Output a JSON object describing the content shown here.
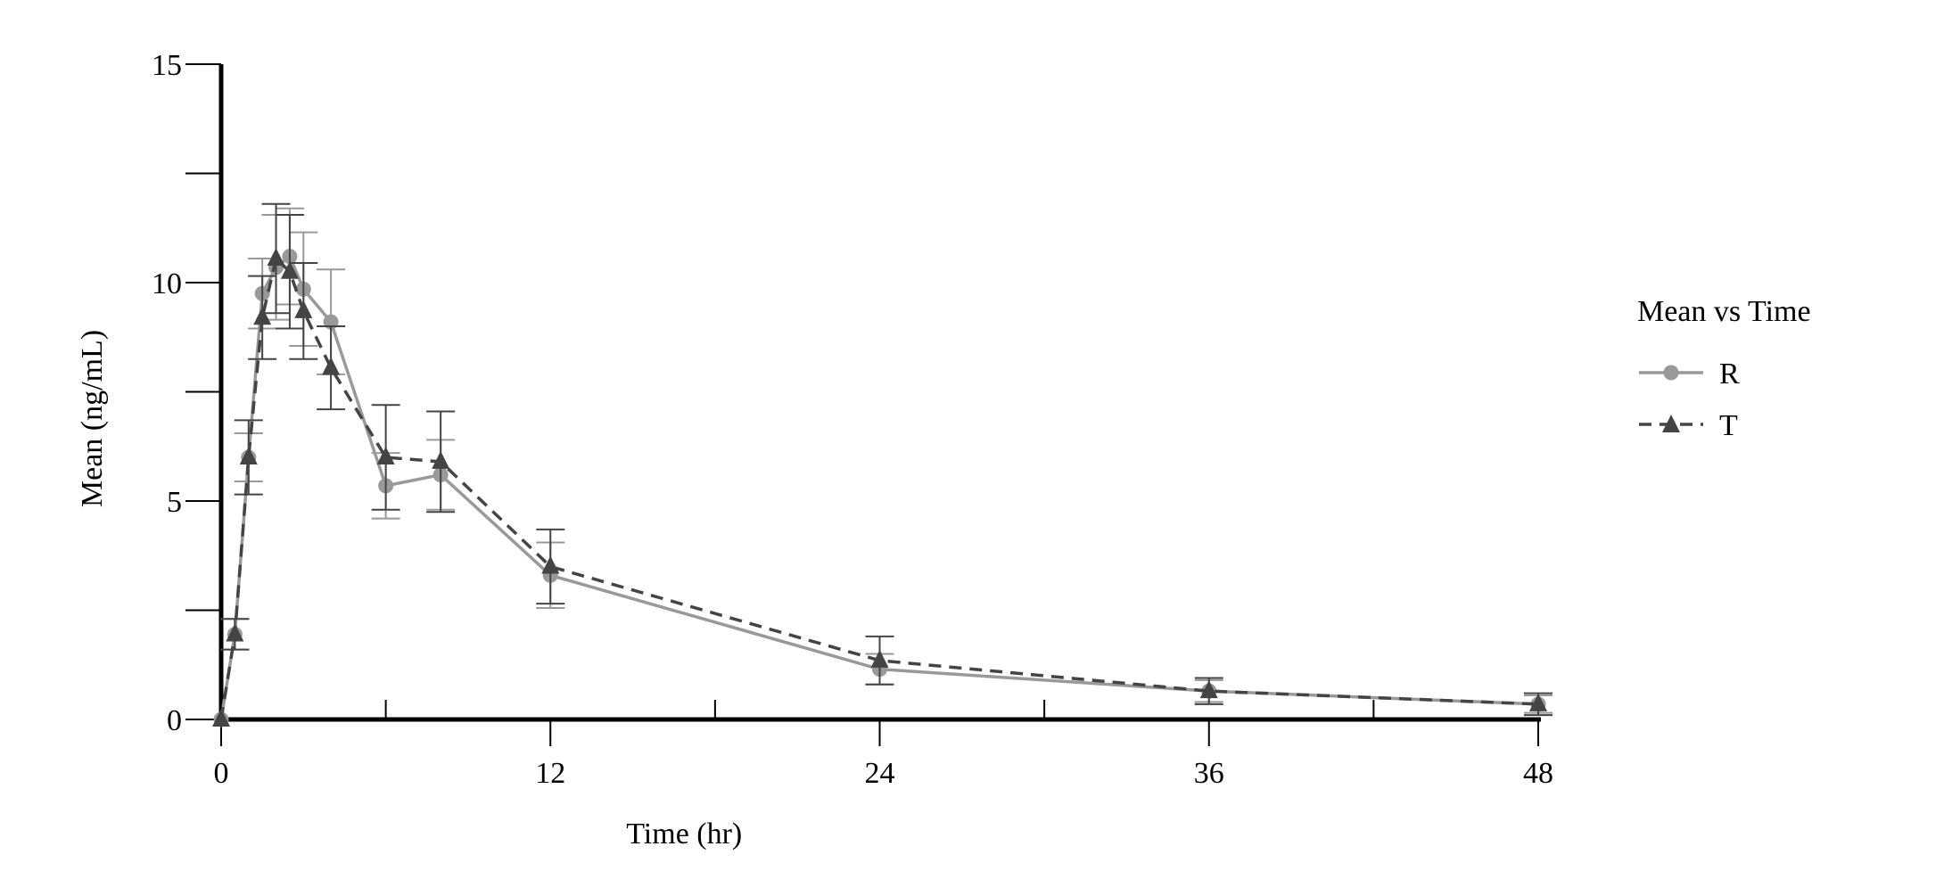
{
  "chart_data": {
    "type": "line",
    "title": "",
    "xlabel": "Time (hr)",
    "ylabel": "Mean (ng/mL)",
    "xlim": [
      0,
      48
    ],
    "ylim": [
      0,
      15
    ],
    "x_ticks_major": [
      0,
      12,
      24,
      36,
      48
    ],
    "x_ticks_minor": [
      6,
      18,
      30,
      42
    ],
    "y_ticks_major": [
      0,
      5,
      10,
      15
    ],
    "y_ticks_minor": [
      2.5,
      7.5,
      12.5
    ],
    "grid": false,
    "legend": {
      "title": "Mean vs Time",
      "placement": "right"
    },
    "series": [
      {
        "name": "R",
        "color": "#999999",
        "line_style": "solid",
        "marker": "circle",
        "x": [
          0,
          0.5,
          1,
          1.5,
          2,
          2.5,
          3,
          4,
          6,
          8,
          12,
          24,
          36,
          48
        ],
        "y": [
          0,
          1.95,
          6.0,
          9.75,
          10.35,
          10.6,
          9.85,
          9.1,
          5.35,
          5.6,
          3.3,
          1.15,
          0.65,
          0.35
        ],
        "error": [
          0,
          0.35,
          0.55,
          0.8,
          1.2,
          1.1,
          1.3,
          1.2,
          0.75,
          0.8,
          0.75,
          0.35,
          0.25,
          0.2
        ]
      },
      {
        "name": "T",
        "color": "#444444",
        "line_style": "dashed",
        "marker": "triangle",
        "x": [
          0,
          0.5,
          1,
          1.5,
          2,
          2.5,
          3,
          4,
          6,
          8,
          12,
          24,
          36,
          48
        ],
        "y": [
          0,
          1.95,
          6.0,
          9.2,
          10.55,
          10.25,
          9.35,
          8.05,
          6.0,
          5.9,
          3.5,
          1.35,
          0.65,
          0.35
        ],
        "error": [
          0,
          0.35,
          0.85,
          0.95,
          1.25,
          1.3,
          1.1,
          0.95,
          1.2,
          1.15,
          0.85,
          0.55,
          0.3,
          0.25
        ]
      }
    ]
  }
}
